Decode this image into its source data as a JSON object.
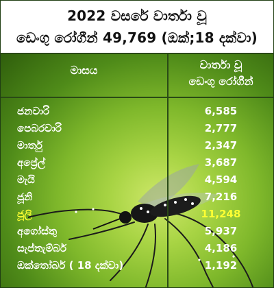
{
  "header": {
    "line1": "2022 වසරේ වාර්තා වූ",
    "line2": "ඩෙංගු රෝගීන් 49,769 (ඔක්;18 දක්වා)"
  },
  "table": {
    "col_month": "මාසය",
    "col_cases_line1": "වාර්තා වූ",
    "col_cases_line2": "ඩෙංගු රෝගීන්",
    "rows": [
      {
        "month": "ජනවාරි",
        "cases": "6,585"
      },
      {
        "month": "පෙබරවාරි",
        "cases": "2,777"
      },
      {
        "month": "මාර්තු",
        "cases": "2,347"
      },
      {
        "month": "අප්‍රේල්",
        "cases": "3,687"
      },
      {
        "month": "මැයි",
        "cases": "4,594"
      },
      {
        "month": "ජූනි",
        "cases": "7,216"
      },
      {
        "month": "ජූලි",
        "cases": "11,248"
      },
      {
        "month": "අගෝස්තු",
        "cases": "5,937"
      },
      {
        "month": "සැප්තැම්බර්",
        "cases": "4,186"
      },
      {
        "month": "ඔක්තෝබර් ( 18 දක්වා)",
        "cases": "1,192"
      }
    ],
    "highlight_color": "#ffff33"
  },
  "colors": {
    "panel_green": "#7fb82b",
    "border": "#2a4a16",
    "text_white": "#ffffff"
  },
  "illustration": "mosquito-image"
}
